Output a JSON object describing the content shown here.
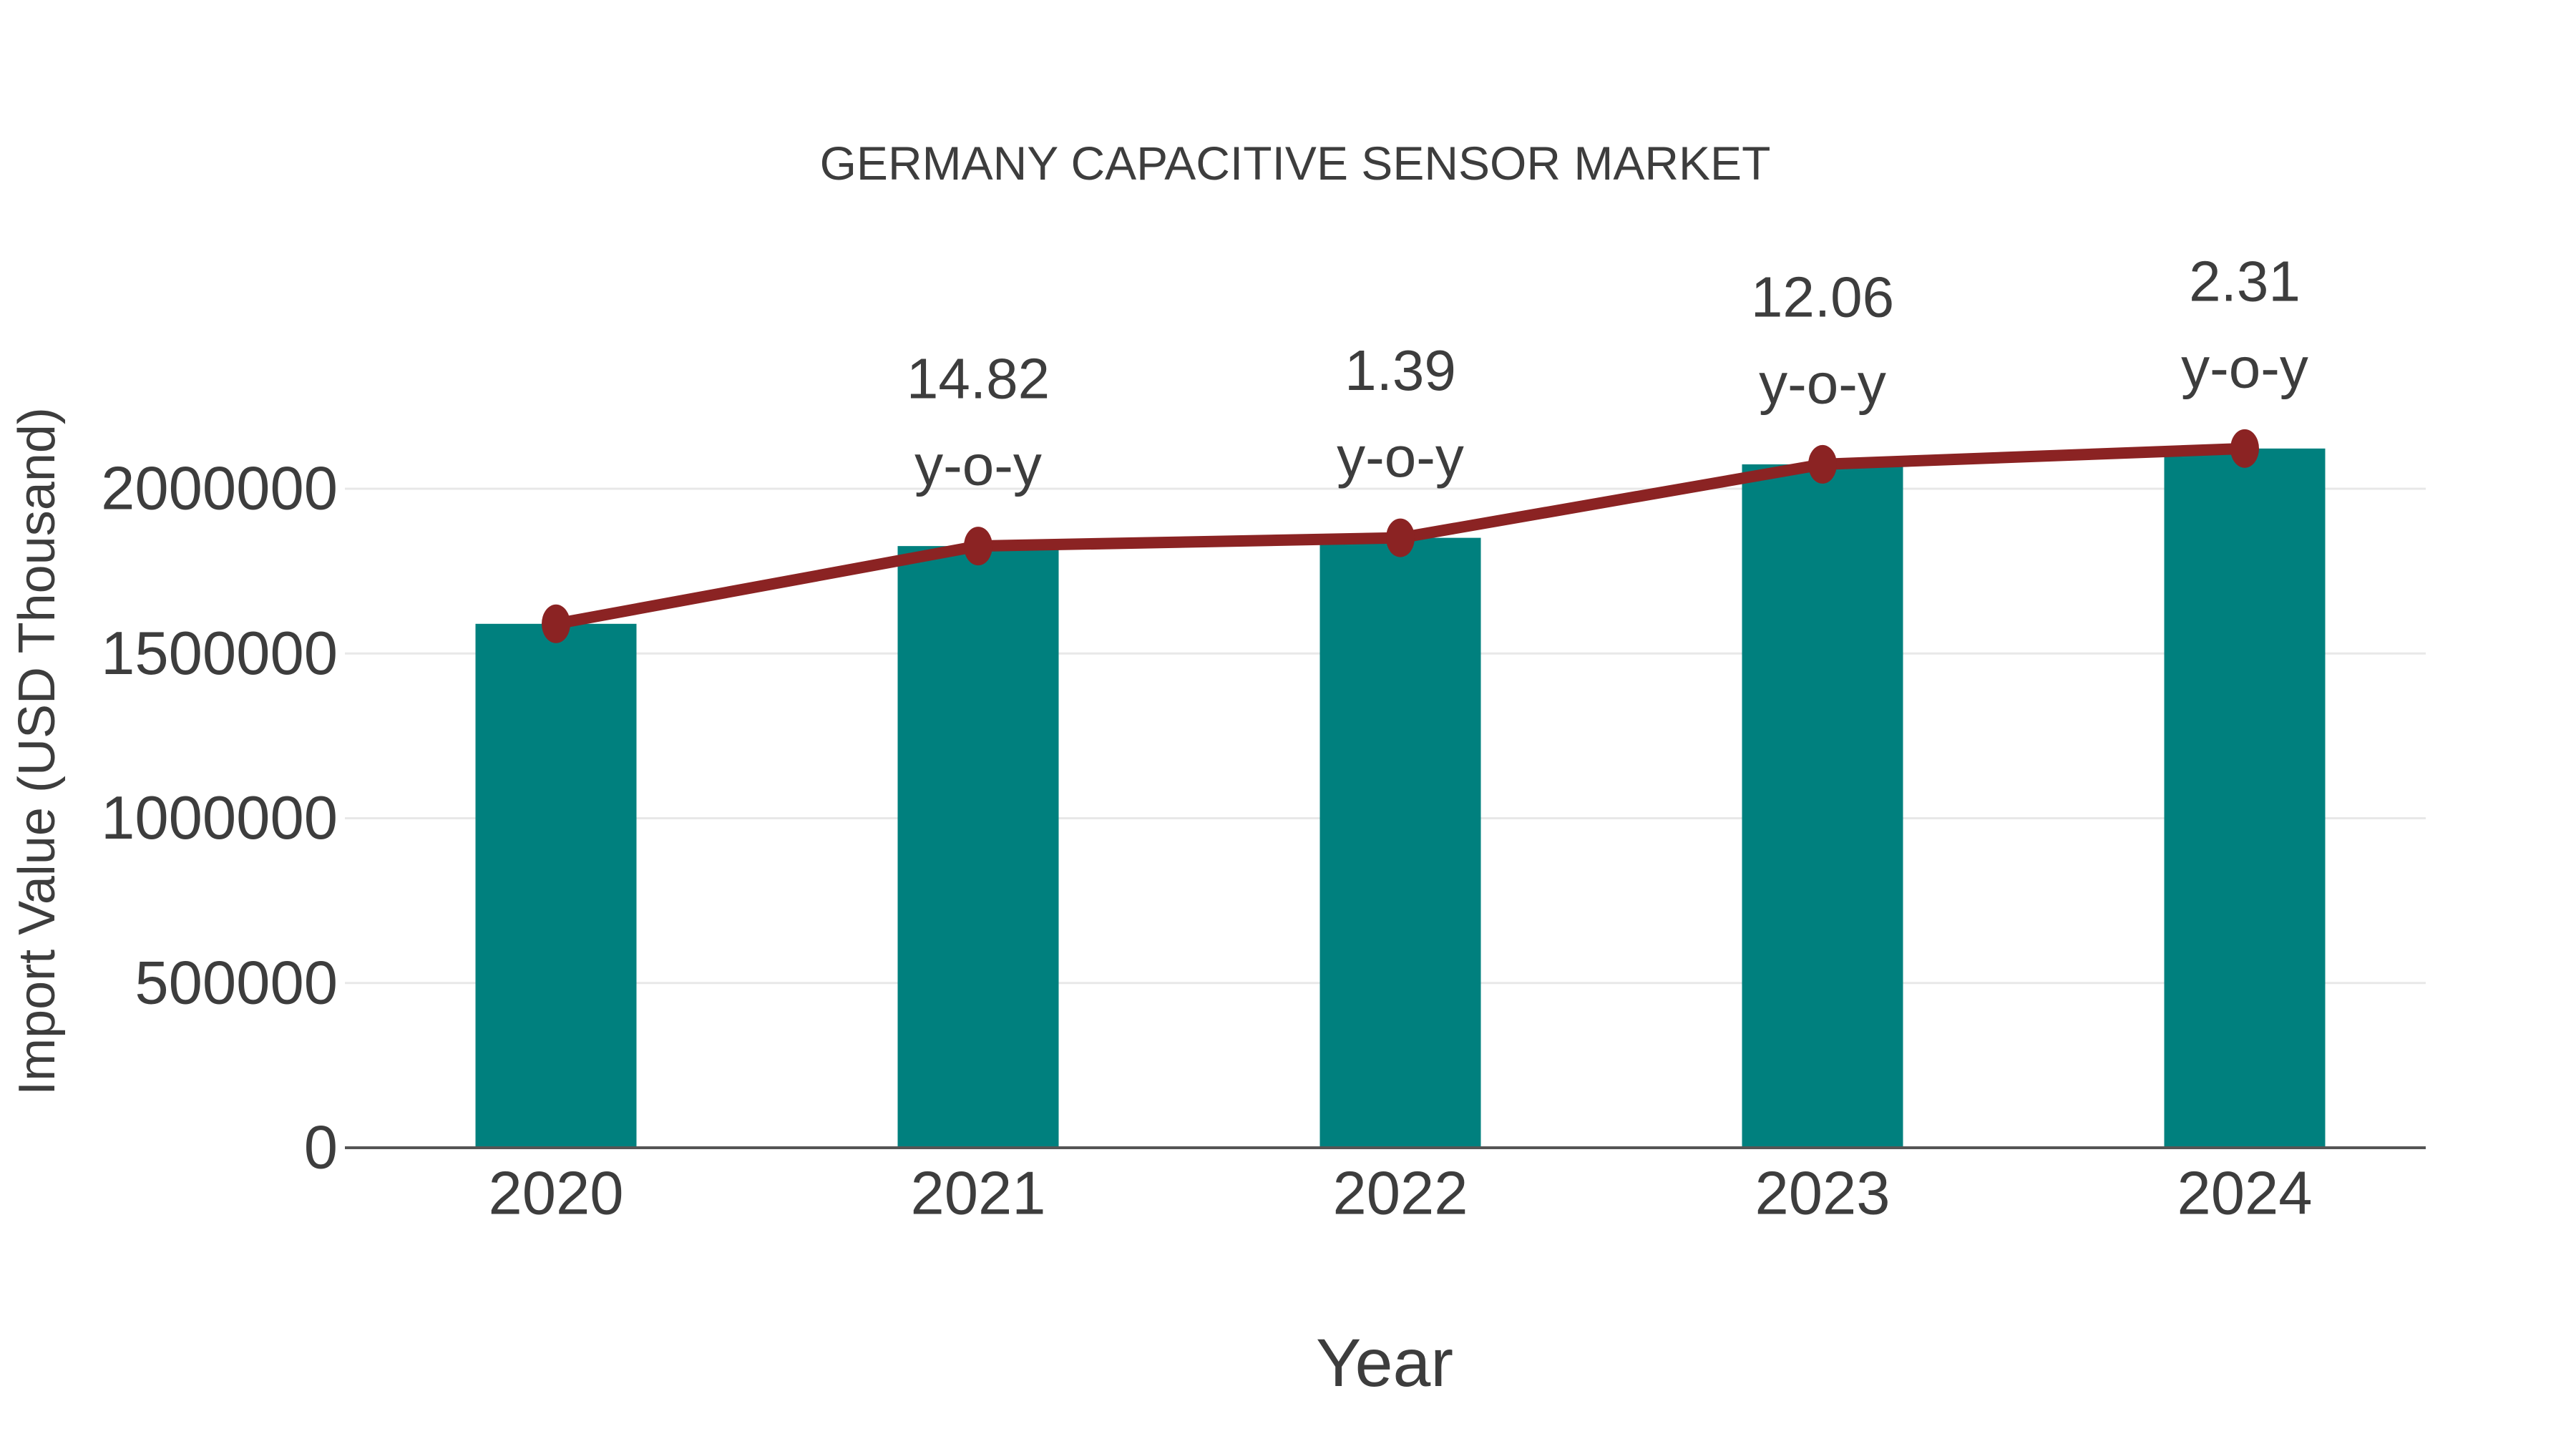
{
  "page": {
    "background": "#ffffff"
  },
  "colors": {
    "bar_fill": "#00807e",
    "line_stroke": "#8b2323",
    "marker_fill": "#8b2323",
    "text": "#3d3d3d",
    "gridline": "#e8e8e8",
    "axis_line": "#555555"
  },
  "chart_data": {
    "type": "combo_bar_line",
    "title": "GERMANY CAPACITIVE SENSOR MARKET",
    "xlabel": "Year",
    "ylabel": "Import Value (USD Thousand)",
    "categories": [
      "2020",
      "2021",
      "2022",
      "2023",
      "2024"
    ],
    "series": [
      {
        "name": "import-value-bars",
        "type": "bar",
        "color": "#00807e",
        "values": [
          1590000,
          1826000,
          1851000,
          2074000,
          2122000
        ]
      },
      {
        "name": "import-value-trend-line",
        "type": "line",
        "color": "#8b2323",
        "marker": "ellipse",
        "values": [
          1590000,
          1826000,
          1851000,
          2074000,
          2122000
        ]
      }
    ],
    "annotations": [
      {
        "category": "2021",
        "value": "14.82",
        "suffix": "y-o-y"
      },
      {
        "category": "2022",
        "value": "1.39",
        "suffix": "y-o-y"
      },
      {
        "category": "2023",
        "value": "12.06",
        "suffix": "y-o-y"
      },
      {
        "category": "2024",
        "value": "2.31",
        "suffix": "y-o-y"
      }
    ],
    "yticks": [
      0,
      500000,
      1000000,
      1500000,
      2000000
    ],
    "ytick_labels": [
      "0",
      "500000",
      "1000000",
      "1500000",
      "2000000"
    ],
    "ylim": [
      0,
      2150000
    ],
    "grid": "horizontal",
    "legend": "none"
  }
}
